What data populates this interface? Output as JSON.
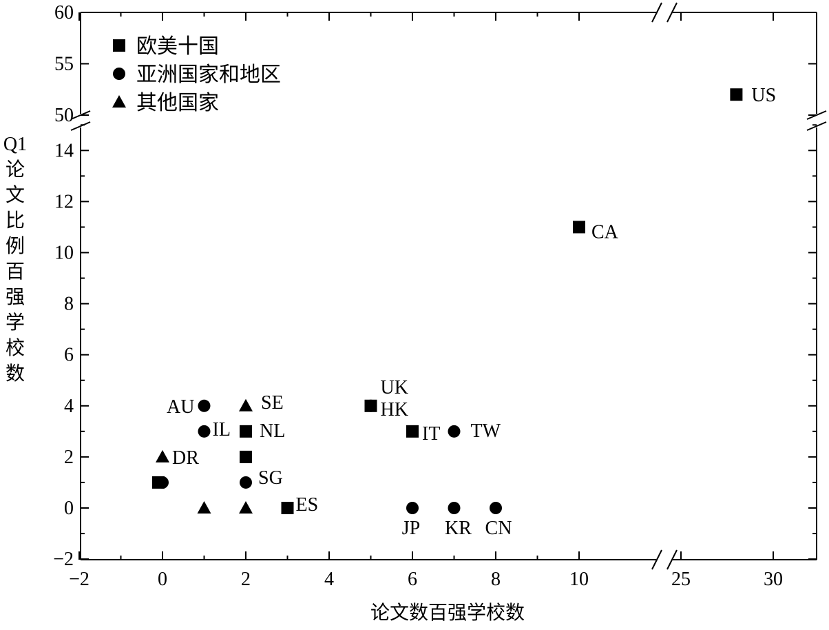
{
  "chart_data": {
    "type": "scatter",
    "xlabel": "论文数百强学校数",
    "ylabel": "Q1论文比例百强学校数",
    "x_axis": {
      "segments": [
        {
          "range": [
            -2,
            10.5
          ],
          "ticks": [
            -2,
            0,
            2,
            4,
            6,
            8,
            10
          ],
          "tick_labels": [
            "−2",
            "0",
            "2",
            "4",
            "6",
            "8",
            "10"
          ]
        },
        {
          "range": [
            23.5,
            33
          ],
          "ticks": [
            25,
            30
          ],
          "tick_labels": [
            "25",
            "30"
          ]
        }
      ],
      "broken": true
    },
    "y_axis": {
      "segments": [
        {
          "range": [
            -2,
            15.5
          ],
          "ticks": [
            -2,
            0,
            2,
            4,
            6,
            8,
            10,
            12,
            14
          ],
          "tick_labels": [
            "−2",
            "0",
            "2",
            "4",
            "6",
            "8",
            "10",
            "12",
            "14"
          ]
        },
        {
          "range": [
            49,
            60
          ],
          "ticks": [
            50,
            55,
            60
          ],
          "tick_labels": [
            "50",
            "55",
            "60"
          ]
        }
      ],
      "broken": true
    },
    "legend": {
      "placement": "top-left",
      "entries": [
        {
          "marker": "square",
          "label": "欧美十国"
        },
        {
          "marker": "circle",
          "label": "亚洲国家和地区"
        },
        {
          "marker": "triangle",
          "label": "其他国家"
        }
      ]
    },
    "series": [
      {
        "name": "欧美十国",
        "marker": "square",
        "points": [
          {
            "x": 28,
            "y": 52,
            "label": "US"
          },
          {
            "x": 10,
            "y": 11,
            "label": "CA"
          },
          {
            "x": 5,
            "y": 4,
            "label": "UK"
          },
          {
            "x": 6,
            "y": 3,
            "label": "IT"
          },
          {
            "x": 2,
            "y": 3,
            "label": "NL"
          },
          {
            "x": 2,
            "y": 2,
            "label": ""
          },
          {
            "x": 3,
            "y": 0,
            "label": "ES"
          },
          {
            "x": -0.1,
            "y": 1,
            "label": ""
          }
        ]
      },
      {
        "name": "亚洲国家和地区",
        "marker": "circle",
        "points": [
          {
            "x": 5,
            "y": 4,
            "label": "HK"
          },
          {
            "x": 7,
            "y": 3,
            "label": "TW"
          },
          {
            "x": 1,
            "y": 4,
            "label": "AU"
          },
          {
            "x": 1,
            "y": 3,
            "label": "IL"
          },
          {
            "x": 2,
            "y": 1,
            "label": "SG"
          },
          {
            "x": 6,
            "y": 0,
            "label": "JP"
          },
          {
            "x": 7,
            "y": 0,
            "label": "KR"
          },
          {
            "x": 8,
            "y": 0,
            "label": "CN"
          },
          {
            "x": 0,
            "y": 1,
            "label": ""
          }
        ]
      },
      {
        "name": "其他国家",
        "marker": "triangle",
        "points": [
          {
            "x": 2,
            "y": 4,
            "label": "SE"
          },
          {
            "x": 0,
            "y": 2,
            "label": "DR"
          },
          {
            "x": 1,
            "y": 0,
            "label": ""
          },
          {
            "x": 2,
            "y": 0,
            "label": ""
          }
        ]
      }
    ]
  }
}
